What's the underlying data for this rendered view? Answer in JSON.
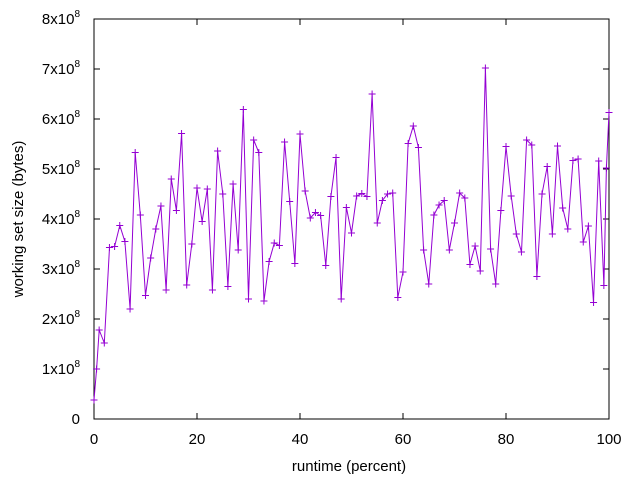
{
  "chart_data": {
    "type": "line",
    "xlabel": "runtime (percent)",
    "ylabel": "working set size (bytes)",
    "xlim": [
      0,
      100
    ],
    "ylim": [
      0,
      800000000
    ],
    "x_ticks": [
      0,
      20,
      40,
      60,
      80,
      100
    ],
    "y_ticks": [
      {
        "value": 0,
        "label": "0",
        "exp": ""
      },
      {
        "value": 100000000,
        "label": "1x10",
        "exp": "8"
      },
      {
        "value": 200000000,
        "label": "2x10",
        "exp": "8"
      },
      {
        "value": 300000000,
        "label": "3x10",
        "exp": "8"
      },
      {
        "value": 400000000,
        "label": "4x10",
        "exp": "8"
      },
      {
        "value": 500000000,
        "label": "5x10",
        "exp": "8"
      },
      {
        "value": 600000000,
        "label": "6x10",
        "exp": "8"
      },
      {
        "value": 700000000,
        "label": "7x10",
        "exp": "8"
      },
      {
        "value": 800000000,
        "label": "8x10",
        "exp": "8"
      }
    ],
    "grid": false,
    "series": [
      {
        "color": "#9400d3",
        "marker": "plus",
        "x": [
          0,
          0.5,
          1,
          2,
          3,
          4,
          5,
          6,
          7,
          8,
          9,
          10,
          11,
          12,
          13,
          14,
          15,
          16,
          17,
          18,
          19,
          20,
          21,
          22,
          23,
          24,
          25,
          26,
          27,
          28,
          29,
          30,
          31,
          32,
          33,
          34,
          35,
          36,
          37,
          38,
          39,
          40,
          41,
          42,
          43,
          44,
          45,
          46,
          47,
          48,
          49,
          50,
          51,
          52,
          53,
          54,
          55,
          56,
          57,
          58,
          59,
          60,
          61,
          62,
          63,
          64,
          65,
          66,
          67,
          68,
          69,
          70,
          71,
          72,
          73,
          74,
          75,
          76,
          77,
          78,
          79,
          80,
          81,
          82,
          83,
          84,
          85,
          86,
          87,
          88,
          89,
          90,
          91,
          92,
          93,
          94,
          95,
          96,
          97,
          98,
          99,
          99.5,
          100
        ],
        "y": [
          38000000,
          100000000,
          178000000,
          152000000,
          343000000,
          345000000,
          387000000,
          355000000,
          220000000,
          533000000,
          408000000,
          247000000,
          322000000,
          380000000,
          426000000,
          258000000,
          480000000,
          417000000,
          571000000,
          268000000,
          350000000,
          462000000,
          395000000,
          460000000,
          258000000,
          536000000,
          450000000,
          265000000,
          470000000,
          338000000,
          619000000,
          240000000,
          558000000,
          533000000,
          236000000,
          315000000,
          352000000,
          347000000,
          554000000,
          435000000,
          311000000,
          570000000,
          456000000,
          402000000,
          413000000,
          407000000,
          307000000,
          445000000,
          523000000,
          240000000,
          423000000,
          372000000,
          446000000,
          451000000,
          445000000,
          650000000,
          392000000,
          437000000,
          450000000,
          452000000,
          243000000,
          294000000,
          551000000,
          586000000,
          543000000,
          338000000,
          270000000,
          408000000,
          428000000,
          437000000,
          338000000,
          392000000,
          452000000,
          442000000,
          309000000,
          346000000,
          296000000,
          702000000,
          340000000,
          270000000,
          417000000,
          545000000,
          446000000,
          370000000,
          334000000,
          558000000,
          548000000,
          285000000,
          450000000,
          505000000,
          370000000,
          546000000,
          422000000,
          380000000,
          517000000,
          520000000,
          354000000,
          386000000,
          233000000,
          516000000,
          267000000,
          502000000,
          613000000
        ]
      }
    ]
  }
}
